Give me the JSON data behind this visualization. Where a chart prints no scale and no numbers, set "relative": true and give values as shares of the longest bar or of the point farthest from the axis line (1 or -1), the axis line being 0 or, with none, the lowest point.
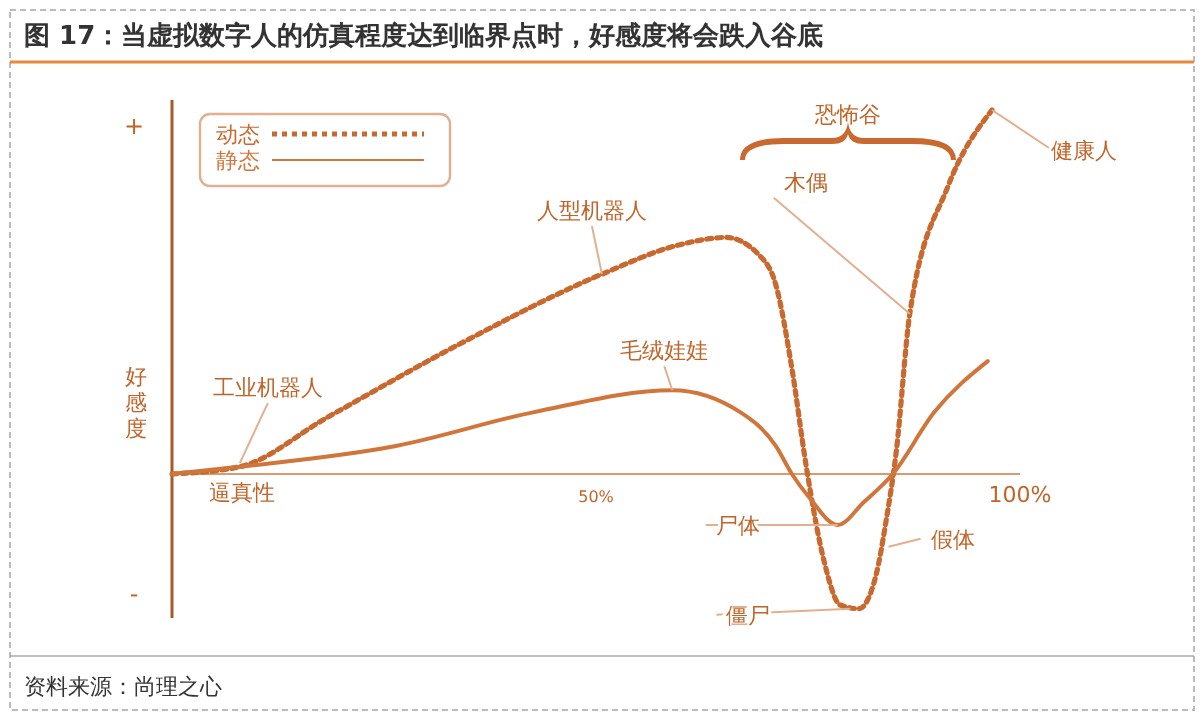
{
  "chart_data": {
    "type": "line",
    "title": "图 17：当虚拟数字人的仿真程度达到临界点时，好感度将会跌入谷底",
    "xlabel": "逼真性",
    "ylabel": "好感度",
    "relative": true,
    "xlim": [
      0,
      100
    ],
    "xticks": [
      {
        "value": 50,
        "label": "50%"
      },
      {
        "value": 100,
        "label": "100%"
      }
    ],
    "legend": "top left",
    "marker": "none",
    "series": [
      {
        "name": "动态",
        "color": "#c8692f",
        "line_style": "dotted",
        "x": [
          0,
          8,
          18.2,
          34.4,
          50.7,
          59.9,
          65.3,
          69.3,
          71.2,
          73.1,
          74.8,
          76.9,
          78.8,
          81,
          83,
          84.2,
          85.4,
          87,
          91.5,
          96.7
        ],
        "values": [
          0,
          0.02,
          0.154,
          0.363,
          0.549,
          0.63,
          0.65,
          0.6,
          0.52,
          0.29,
          0.02,
          -0.24,
          -0.36,
          -0.37,
          -0.28,
          -0.13,
          0.06,
          0.44,
          0.79,
          1
        ]
      },
      {
        "name": "静态",
        "color": "#d0763b",
        "line_style": "solid",
        "x": [
          0,
          8,
          26.4,
          42.7,
          59,
          67,
          71.2,
          73.1,
          75.2,
          78.5,
          81.6,
          85,
          89.9,
          96.2
        ],
        "values": [
          0,
          0.02,
          0.077,
          0.17,
          0.23,
          0.17,
          0.077,
          0,
          -0.066,
          -0.14,
          -0.077,
          0,
          0.17,
          0.31
        ]
      }
    ],
    "annotations": [
      {
        "text": "工业机器人",
        "x": 8,
        "y": 0.03
      },
      {
        "text": "人型机器人",
        "x": 50.7,
        "y": 0.549
      },
      {
        "text": "毛绒娃娃",
        "x": 59,
        "y": 0.23
      },
      "恐怖谷",
      {
        "text": "木偶",
        "x": 87,
        "y": 0.44
      },
      {
        "text": "健康人",
        "x": 96.7,
        "y": 1
      },
      {
        "text": "尸体",
        "x": 78.5,
        "y": -0.14
      },
      {
        "text": "假体",
        "x": 84.5,
        "y": -0.2
      },
      {
        "text": "僵尸",
        "x": 80,
        "y": -0.37
      },
      "+",
      "-",
      "资料来源：尚理之心"
    ]
  }
}
